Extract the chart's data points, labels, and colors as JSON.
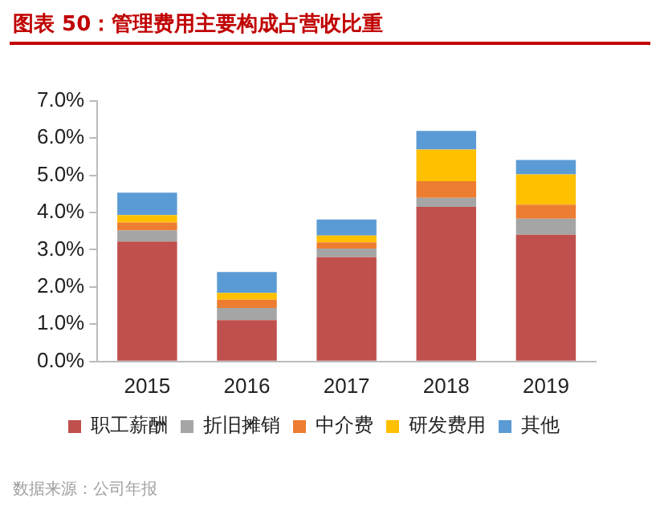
{
  "chart_data": {
    "type": "bar",
    "title": "图表 50：管理费用主要构成占营收比重",
    "stacked": true,
    "categories": [
      "2015",
      "2016",
      "2017",
      "2018",
      "2019"
    ],
    "series": [
      {
        "name": "职工薪酬",
        "color": "#c0504d",
        "values": [
          3.22,
          1.11,
          2.8,
          4.15,
          3.4
        ]
      },
      {
        "name": "折旧摊销",
        "color": "#a5a5a5",
        "values": [
          0.3,
          0.33,
          0.23,
          0.24,
          0.43
        ]
      },
      {
        "name": "中介费",
        "color": "#ed7d31",
        "values": [
          0.21,
          0.22,
          0.17,
          0.45,
          0.38
        ]
      },
      {
        "name": "研发费用",
        "color": "#ffc000",
        "values": [
          0.2,
          0.18,
          0.18,
          0.85,
          0.81
        ]
      },
      {
        "name": "其他",
        "color": "#5b9bd5",
        "values": [
          0.6,
          0.56,
          0.43,
          0.5,
          0.39
        ]
      }
    ],
    "ylim": [
      0,
      7
    ],
    "yticks": [
      {
        "value": 0,
        "label": "0.0%"
      },
      {
        "value": 1,
        "label": "1.0%"
      },
      {
        "value": 2,
        "label": "2.0%"
      },
      {
        "value": 3,
        "label": "3.0%"
      },
      {
        "value": 4,
        "label": "4.0%"
      },
      {
        "value": 5,
        "label": "5.0%"
      },
      {
        "value": 6,
        "label": "6.0%"
      },
      {
        "value": 7,
        "label": "7.0%"
      }
    ],
    "grid": false,
    "legend": "bottom",
    "annotations": [
      "数据来源：公司年报"
    ]
  }
}
